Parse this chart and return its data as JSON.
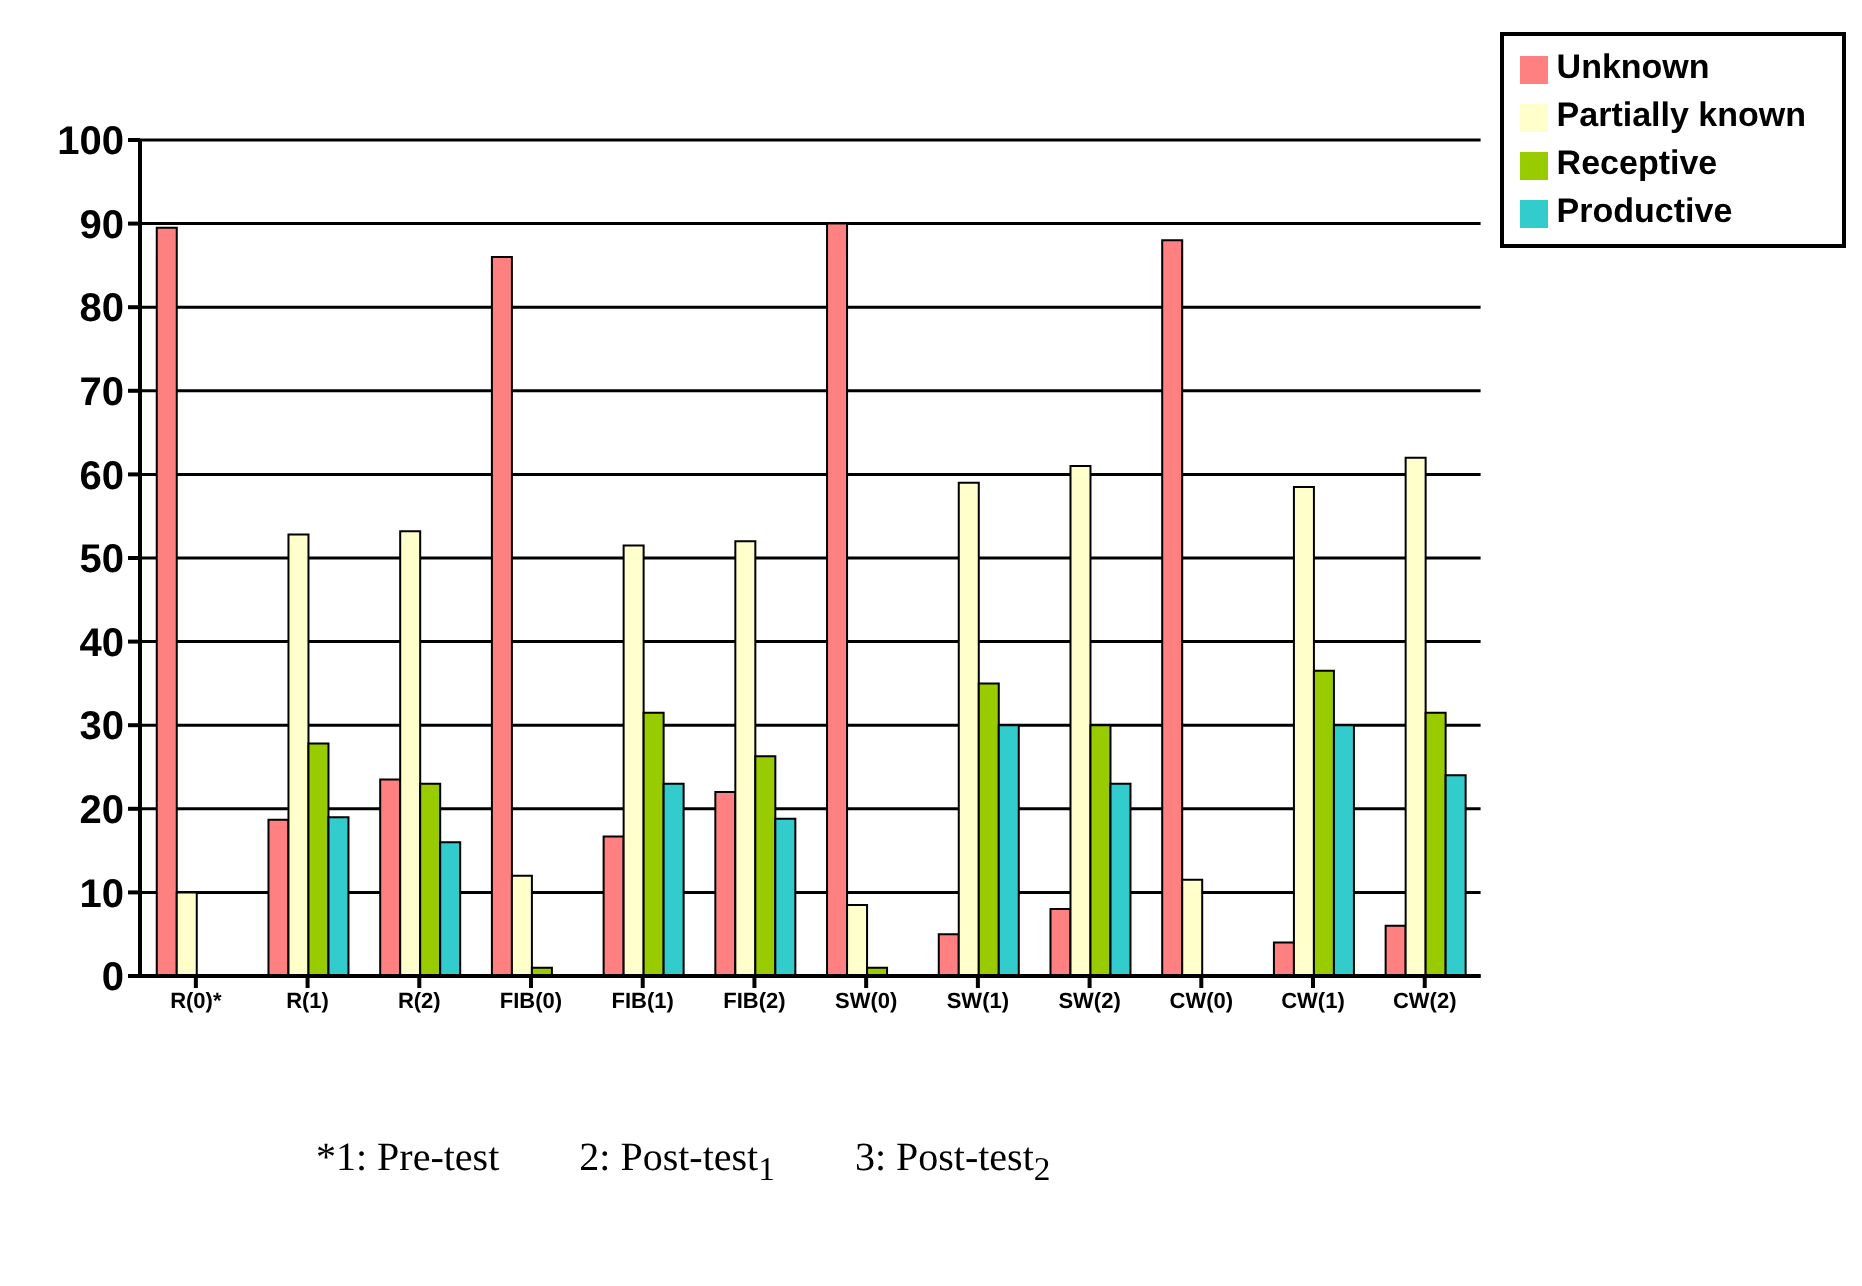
{
  "chart_data": {
    "type": "bar",
    "categories": [
      "R(0)*",
      "R(1)",
      "R(2)",
      "FIB(0)",
      "FIB(1)",
      "FIB(2)",
      "SW(0)",
      "SW(1)",
      "SW(2)",
      "CW(0)",
      "CW(1)",
      "CW(2)"
    ],
    "series": [
      {
        "name": "Unknown",
        "color": "#ff8080",
        "values": [
          89.5,
          18.7,
          23.5,
          86,
          16.7,
          22,
          90,
          5,
          8,
          88,
          4,
          6
        ]
      },
      {
        "name": "Partially known",
        "color": "#ffffcc",
        "values": [
          10,
          52.8,
          53.2,
          12,
          51.5,
          52,
          8.5,
          59,
          61,
          11.5,
          58.5,
          62
        ]
      },
      {
        "name": "Receptive",
        "color": "#99cc00",
        "values": [
          0,
          27.8,
          23,
          1,
          31.5,
          26.3,
          1,
          35,
          30,
          0,
          36.5,
          31.5
        ]
      },
      {
        "name": "Productive",
        "color": "#33cccc",
        "values": [
          0,
          19,
          16,
          0,
          23,
          18.8,
          0,
          30,
          23,
          0,
          30,
          24
        ]
      }
    ],
    "ylim": [
      0,
      100
    ],
    "yticks": [
      0,
      10,
      20,
      30,
      40,
      50,
      60,
      70,
      80,
      90,
      100
    ],
    "grid": "y",
    "legend": "top right",
    "annotations": [
      "*1: Pre-test",
      "2: Post-test$_{1}$",
      "3: Post-test$_{2}$"
    ]
  }
}
